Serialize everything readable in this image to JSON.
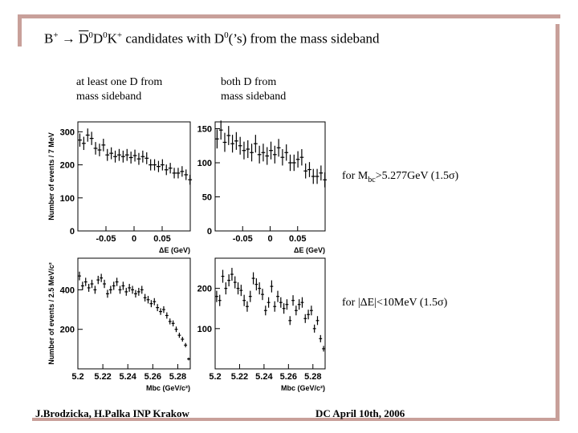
{
  "title": {
    "b_plus": "B",
    "b_sup": "+",
    "arrow": " → ",
    "d0bar": "D",
    "d0bar_sup": "0",
    "d0": "D",
    "d0_sup": "0",
    "k": "K",
    "k_sup": "+",
    "rest": " candidates with D",
    "rest_sup": "0",
    "rest_tail": "(’s) from the mass sideband"
  },
  "column_notes": {
    "left": "at least one D from\nmass sideband",
    "right": "both D from\nmass sideband"
  },
  "conditions": {
    "mbc_prefix": "for M",
    "mbc_sub": "bc",
    "mbc_suffix": ">5.277GeV (1.5σ)",
    "de": "for |ΔE|<10MeV (1.5σ)"
  },
  "footer": {
    "authors": "J.Brodzicka, H.Palka  INP Krakow",
    "conference": "DC    April 10th, 2006"
  },
  "chart_data": [
    {
      "id": "de-left",
      "type": "scatter",
      "title": "",
      "xlabel": "ΔE (GeV)",
      "ylabel": "Number of events / 7 MeV",
      "xlim": [
        -0.1,
        0.1
      ],
      "ylim": [
        0,
        330
      ],
      "x_ticks": [
        "-0.05",
        "0",
        "0.05"
      ],
      "x_tick_values": [
        -0.05,
        0,
        0.05
      ],
      "y_ticks": [
        "0",
        "100",
        "200",
        "300"
      ],
      "y_tick_values": [
        0,
        100,
        200,
        300
      ],
      "x": [
        -0.0965,
        -0.0895,
        -0.0825,
        -0.0755,
        -0.0685,
        -0.0615,
        -0.0545,
        -0.0475,
        -0.0405,
        -0.0335,
        -0.0265,
        -0.0195,
        -0.0125,
        -0.0055,
        0.0015,
        0.0085,
        0.0155,
        0.0225,
        0.0295,
        0.0365,
        0.0435,
        0.0505,
        0.0575,
        0.0645,
        0.0715,
        0.0785,
        0.0855,
        0.0925,
        0.0995
      ],
      "values": [
        275,
        265,
        290,
        280,
        250,
        245,
        260,
        230,
        235,
        225,
        230,
        225,
        230,
        222,
        228,
        218,
        225,
        220,
        200,
        200,
        195,
        200,
        185,
        190,
        175,
        175,
        180,
        170,
        155
      ],
      "errors": [
        20,
        20,
        20,
        20,
        19,
        19,
        19,
        18,
        18,
        18,
        18,
        18,
        18,
        18,
        18,
        18,
        18,
        18,
        17,
        17,
        17,
        17,
        16,
        16,
        16,
        16,
        16,
        16,
        15
      ]
    },
    {
      "id": "de-right",
      "type": "scatter",
      "title": "",
      "xlabel": "ΔE (GeV)",
      "ylabel": "",
      "xlim": [
        -0.1,
        0.1
      ],
      "ylim": [
        0,
        160
      ],
      "x_ticks": [
        "-0.05",
        "0",
        "0.05"
      ],
      "x_tick_values": [
        -0.05,
        0,
        0.05
      ],
      "y_ticks": [
        "0",
        "50",
        "100",
        "150"
      ],
      "y_tick_values": [
        0,
        50,
        100,
        150
      ],
      "x": [
        -0.0965,
        -0.0895,
        -0.0825,
        -0.0755,
        -0.0685,
        -0.0615,
        -0.0545,
        -0.0475,
        -0.0405,
        -0.0335,
        -0.0265,
        -0.0195,
        -0.0125,
        -0.0055,
        0.0015,
        0.0085,
        0.0155,
        0.0225,
        0.0295,
        0.0365,
        0.0435,
        0.0505,
        0.0575,
        0.0645,
        0.0715,
        0.0785,
        0.0855,
        0.0925,
        0.0995
      ],
      "values": [
        135,
        148,
        130,
        140,
        128,
        132,
        125,
        118,
        120,
        115,
        128,
        112,
        115,
        110,
        118,
        112,
        122,
        108,
        115,
        100,
        100,
        105,
        108,
        88,
        90,
        80,
        80,
        85,
        75
      ],
      "errors": [
        14,
        14,
        14,
        14,
        13,
        13,
        13,
        13,
        13,
        13,
        13,
        13,
        13,
        13,
        13,
        13,
        13,
        12,
        12,
        12,
        12,
        12,
        12,
        11,
        11,
        11,
        11,
        11,
        11
      ]
    },
    {
      "id": "mbc-left",
      "type": "scatter",
      "title": "",
      "xlabel": "Mbc (GeV/c²)",
      "ylabel": "Number of events / 2.5 MeV/c²",
      "xlim": [
        5.2,
        5.29
      ],
      "ylim": [
        0,
        560
      ],
      "x_ticks": [
        "5.2",
        "5.22",
        "5.24",
        "5.26",
        "5.28"
      ],
      "x_tick_values": [
        5.2,
        5.22,
        5.24,
        5.26,
        5.28
      ],
      "y_ticks": [
        "200",
        "400"
      ],
      "y_tick_values": [
        200,
        400
      ],
      "x": [
        5.20125,
        5.20375,
        5.20625,
        5.20875,
        5.21125,
        5.21375,
        5.21625,
        5.21875,
        5.22125,
        5.22375,
        5.22625,
        5.22875,
        5.23125,
        5.23375,
        5.23625,
        5.23875,
        5.24125,
        5.24375,
        5.24625,
        5.24875,
        5.25125,
        5.25375,
        5.25625,
        5.25875,
        5.26125,
        5.26375,
        5.26625,
        5.26875,
        5.27125,
        5.27375,
        5.27625,
        5.27875,
        5.28125,
        5.28375,
        5.28625,
        5.28875
      ],
      "values": [
        470,
        420,
        440,
        410,
        430,
        400,
        450,
        460,
        430,
        380,
        400,
        420,
        440,
        400,
        420,
        390,
        410,
        400,
        380,
        390,
        400,
        360,
        350,
        330,
        340,
        310,
        290,
        300,
        270,
        240,
        230,
        200,
        170,
        150,
        120,
        50
      ],
      "errors": [
        22,
        21,
        21,
        20,
        21,
        20,
        21,
        21,
        21,
        20,
        20,
        21,
        21,
        20,
        21,
        20,
        20,
        20,
        19,
        20,
        20,
        19,
        19,
        18,
        18,
        18,
        17,
        17,
        16,
        15,
        15,
        14,
        13,
        12,
        11,
        7
      ]
    },
    {
      "id": "mbc-right",
      "type": "scatter",
      "title": "",
      "xlabel": "Mbc (GeV/c²)",
      "ylabel": "",
      "xlim": [
        5.2,
        5.29
      ],
      "ylim": [
        0,
        275
      ],
      "x_ticks": [
        "5.2",
        "5.22",
        "5.24",
        "5.26",
        "5.28"
      ],
      "x_tick_values": [
        5.2,
        5.22,
        5.24,
        5.26,
        5.28
      ],
      "y_ticks": [
        "100",
        "200"
      ],
      "y_tick_values": [
        100,
        200
      ],
      "x": [
        5.20125,
        5.20375,
        5.20625,
        5.20875,
        5.21125,
        5.21375,
        5.21625,
        5.21875,
        5.22125,
        5.22375,
        5.22625,
        5.22875,
        5.23125,
        5.23375,
        5.23625,
        5.23875,
        5.24125,
        5.24375,
        5.24625,
        5.24875,
        5.25125,
        5.25375,
        5.25625,
        5.25875,
        5.26125,
        5.26375,
        5.26625,
        5.26875,
        5.27125,
        5.27375,
        5.27625,
        5.27875,
        5.28125,
        5.28375,
        5.28625,
        5.28875
      ],
      "values": [
        180,
        170,
        230,
        200,
        220,
        235,
        215,
        200,
        195,
        170,
        155,
        180,
        225,
        210,
        200,
        185,
        145,
        165,
        205,
        155,
        180,
        165,
        150,
        160,
        120,
        170,
        145,
        160,
        165,
        125,
        135,
        145,
        100,
        120,
        75,
        50
      ],
      "errors": [
        14,
        14,
        16,
        15,
        15,
        16,
        15,
        15,
        14,
        14,
        13,
        14,
        15,
        15,
        15,
        14,
        12,
        13,
        15,
        13,
        14,
        13,
        13,
        13,
        11,
        13,
        12,
        13,
        13,
        11,
        12,
        12,
        10,
        11,
        9,
        7
      ]
    }
  ]
}
